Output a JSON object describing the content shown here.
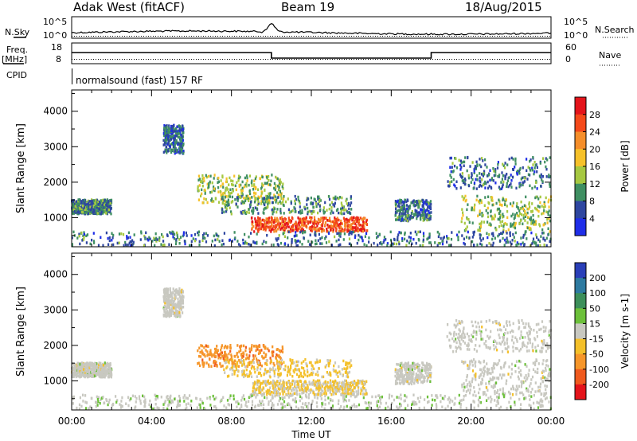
{
  "header": {
    "station": "Adak West (fitACF)",
    "beam": "Beam 19",
    "date": "18/Aug/2015"
  },
  "top_panels": {
    "nsky_label": "N.Sky",
    "nsearch_label": "N.Search",
    "freq_label": "Freq.",
    "freq_unit": "[MHz]",
    "nave_label": "Nave",
    "cpid_label": "CPID",
    "cpid_value": "normalsound (fast) 157 RF",
    "noise_ticks": [
      "10^5",
      "10^0"
    ],
    "freq_ticks": [
      "18",
      "8"
    ],
    "nave_ticks": [
      "60",
      "0"
    ]
  },
  "axes": {
    "ylabel": "Slant Range [km]",
    "xlabel": "Time UT",
    "y_ticks": [
      "4000",
      "3000",
      "2000",
      "1000"
    ],
    "x_ticks": [
      "00:00",
      "04:00",
      "08:00",
      "12:00",
      "16:00",
      "20:00",
      "00:00"
    ]
  },
  "power_colorbar": {
    "label": "Power [dB]",
    "ticks": [
      "28",
      "24",
      "20",
      "16",
      "12",
      "8",
      "4"
    ],
    "colors": [
      "#e4141b",
      "#f4491a",
      "#f58e2a",
      "#f6c12a",
      "#a6c841",
      "#3f8f62",
      "#2e46a0",
      "#1f2ee8"
    ]
  },
  "velocity_colorbar": {
    "label": "Velocity [m s-1]",
    "ticks": [
      "200",
      "100",
      "50",
      "15",
      "-15",
      "-50",
      "-100",
      "-200"
    ],
    "colors": [
      "#2a3fb8",
      "#2e7aa0",
      "#3c8f5a",
      "#6cc03a",
      "#c8c8c0",
      "#f4c02a",
      "#f6962a",
      "#f05a1e",
      "#e4141b"
    ]
  },
  "chart_data": [
    {
      "type": "heatmap",
      "title": "",
      "quantity": "Power [dB]",
      "xlabel": "Time UT",
      "ylabel": "Slant Range [km]",
      "xlim": [
        0,
        24
      ],
      "ylim": [
        180,
        4600
      ],
      "clim": [
        0,
        32
      ],
      "regions": [
        {
          "t": [
            0.0,
            2.0
          ],
          "r": [
            1100,
            1500
          ],
          "value": 9
        },
        {
          "t": [
            4.6,
            5.6
          ],
          "r": [
            2800,
            3600
          ],
          "value": 7
        },
        {
          "t": [
            6.3,
            10.6
          ],
          "r": [
            1400,
            2200
          ],
          "value": 14
        },
        {
          "t": [
            9.0,
            14.8
          ],
          "r": [
            600,
            1000
          ],
          "value": 26
        },
        {
          "t": [
            7.5,
            14.0
          ],
          "r": [
            1100,
            1600
          ],
          "value": 10
        },
        {
          "t": [
            16.2,
            18.0
          ],
          "r": [
            900,
            1500
          ],
          "value": 8
        },
        {
          "t": [
            18.8,
            24.0
          ],
          "r": [
            1800,
            2700
          ],
          "value": 8
        },
        {
          "t": [
            19.5,
            24.0
          ],
          "r": [
            600,
            1600
          ],
          "value": 13
        },
        {
          "t": [
            0.0,
            24.0
          ],
          "r": [
            200,
            600
          ],
          "value": 8
        }
      ]
    },
    {
      "type": "heatmap",
      "title": "",
      "quantity": "Velocity [m s-1]",
      "xlabel": "Time UT",
      "ylabel": "Slant Range [km]",
      "xlim": [
        0,
        24
      ],
      "ylim": [
        180,
        4600
      ],
      "clim": [
        -250,
        250
      ],
      "regions": [
        {
          "t": [
            0.0,
            2.0
          ],
          "r": [
            1100,
            1500
          ],
          "value": 0
        },
        {
          "t": [
            4.6,
            5.6
          ],
          "r": [
            2800,
            3600
          ],
          "value": 0
        },
        {
          "t": [
            6.3,
            10.6
          ],
          "r": [
            1400,
            2000
          ],
          "value": -120
        },
        {
          "t": [
            9.0,
            14.8
          ],
          "r": [
            600,
            1000
          ],
          "value": -30
        },
        {
          "t": [
            7.5,
            14.0
          ],
          "r": [
            1100,
            1600
          ],
          "value": -40
        },
        {
          "t": [
            16.2,
            18.0
          ],
          "r": [
            900,
            1500
          ],
          "value": 0
        },
        {
          "t": [
            18.8,
            24.0
          ],
          "r": [
            1800,
            2700
          ],
          "value": 0
        },
        {
          "t": [
            19.5,
            24.0
          ],
          "r": [
            600,
            1600
          ],
          "value": 0
        },
        {
          "t": [
            0.0,
            24.0
          ],
          "r": [
            200,
            600
          ],
          "value": 10
        }
      ]
    }
  ]
}
